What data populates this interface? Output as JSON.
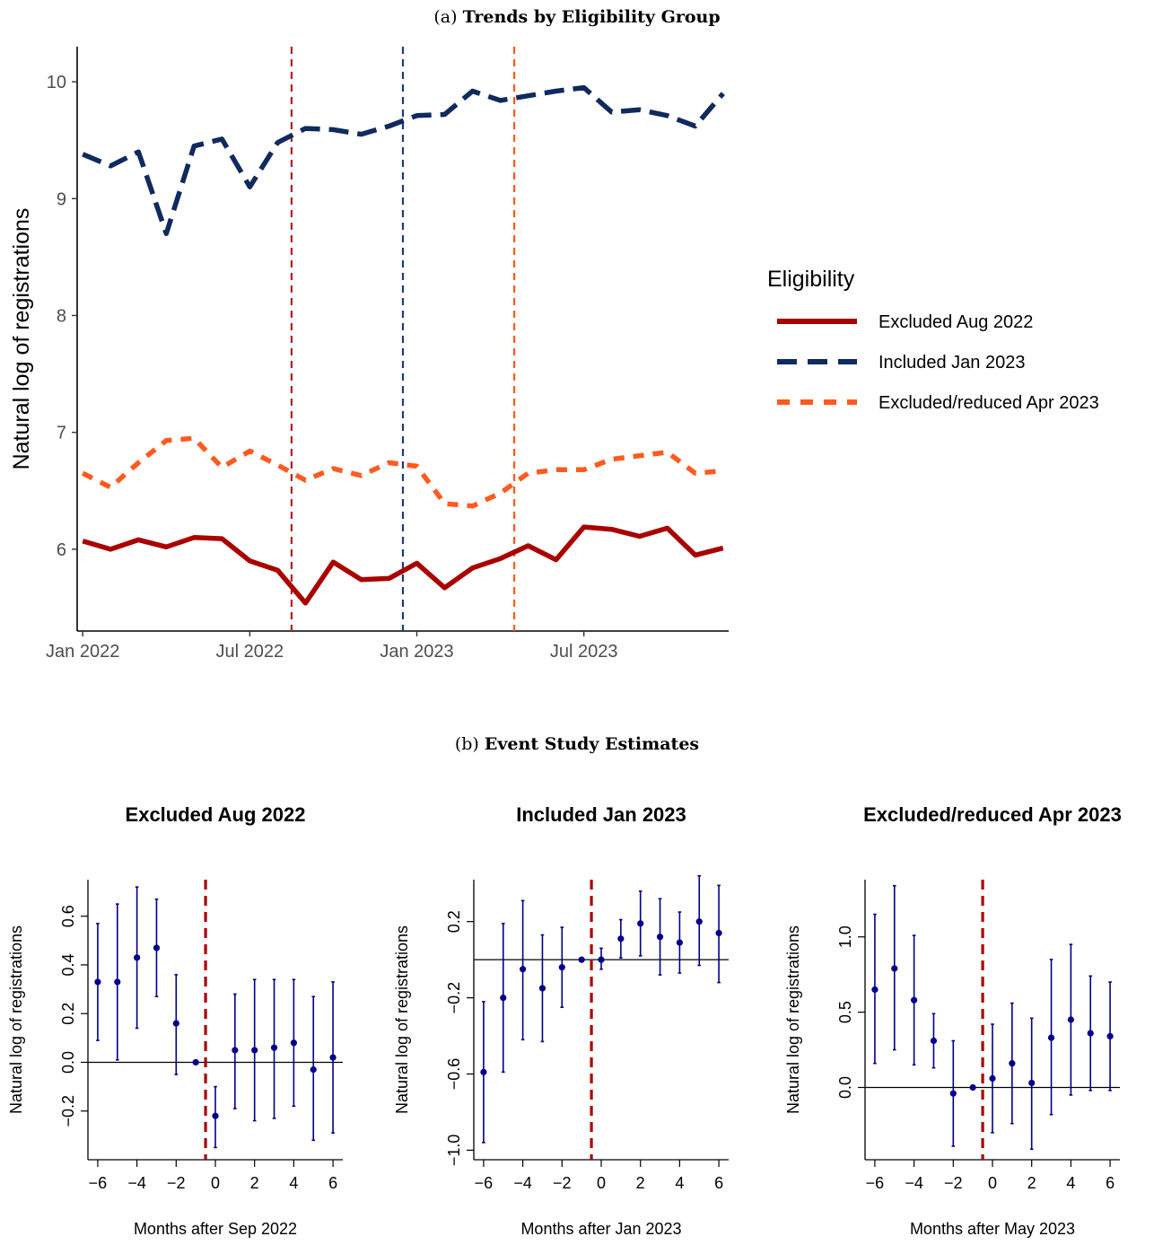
{
  "captions": {
    "a_prefix": "(a)",
    "a_title": "Trends by Eligibility Group",
    "b_prefix": "(b)",
    "b_title": "Event Study Estimates"
  },
  "chart_data": [
    {
      "type": "line",
      "ylabel": "Natural log of registrations",
      "ylim": [
        5.3,
        10.3
      ],
      "yticks": [
        6,
        7,
        8,
        9,
        10
      ],
      "xticks": [
        {
          "label": "Jan 2022",
          "month": 0
        },
        {
          "label": "Jul 2022",
          "month": 6
        },
        {
          "label": "Jan 2023",
          "month": 12
        },
        {
          "label": "Jul 2023",
          "month": 18
        }
      ],
      "xlim": [
        -0.2,
        23.2
      ],
      "legend_title": "Eligibility",
      "legend_position": "right",
      "vlines": [
        {
          "month": 7.5,
          "color": "#b22222"
        },
        {
          "month": 11.5,
          "color": "#1f3a7a"
        },
        {
          "month": 15.5,
          "color": "#ff5a1f"
        }
      ],
      "series": [
        {
          "name": "Excluded Aug 2022",
          "color": "#aa0000",
          "dash": "solid",
          "values": [
            6.07,
            6.0,
            6.08,
            6.02,
            6.1,
            6.09,
            5.9,
            5.82,
            5.54,
            5.89,
            5.74,
            5.75,
            5.88,
            5.67,
            5.84,
            5.92,
            6.03,
            5.91,
            6.19,
            6.17,
            6.11,
            6.18,
            5.95,
            6.01
          ]
        },
        {
          "name": "Included Jan 2023",
          "color": "#102a5e",
          "dash": "long",
          "values": [
            9.38,
            9.28,
            9.4,
            8.7,
            9.45,
            9.51,
            9.1,
            9.48,
            9.6,
            9.59,
            9.55,
            9.62,
            9.71,
            9.72,
            9.92,
            9.84,
            9.88,
            9.92,
            9.95,
            9.74,
            9.76,
            9.71,
            9.62,
            9.9
          ]
        },
        {
          "name": "Excluded/reduced Apr 2023",
          "color": "#ff5a1f",
          "dash": "short",
          "values": [
            6.65,
            6.53,
            6.74,
            6.93,
            6.95,
            6.7,
            6.84,
            6.72,
            6.59,
            6.69,
            6.63,
            6.74,
            6.71,
            6.39,
            6.37,
            6.48,
            6.65,
            6.68,
            6.68,
            6.77,
            6.8,
            6.83,
            6.65,
            6.67
          ]
        }
      ]
    },
    {
      "type": "scatter",
      "title": "Excluded Aug 2022",
      "xlabel": "Months after Sep 2022",
      "ylabel": "Natural log of registrations",
      "xlim": [
        -6.5,
        6.5
      ],
      "ylim": [
        -0.4,
        0.75
      ],
      "yticks": [
        -0.2,
        0.0,
        0.2,
        0.4,
        0.6
      ],
      "ytick_labels": [
        "−0.2",
        "0.0",
        "0.2",
        "0.4",
        "0.6"
      ],
      "xticks": [
        -6,
        -4,
        -2,
        0,
        2,
        4,
        6
      ],
      "xtick_labels": [
        "−6",
        "−4",
        "−2",
        "0",
        "2",
        "4",
        "6"
      ],
      "vline": -0.5,
      "points": [
        {
          "x": -6,
          "y": 0.33,
          "lo": 0.09,
          "hi": 0.57
        },
        {
          "x": -5,
          "y": 0.33,
          "lo": 0.01,
          "hi": 0.65
        },
        {
          "x": -4,
          "y": 0.43,
          "lo": 0.14,
          "hi": 0.72
        },
        {
          "x": -3,
          "y": 0.47,
          "lo": 0.27,
          "hi": 0.67
        },
        {
          "x": -2,
          "y": 0.16,
          "lo": -0.05,
          "hi": 0.36
        },
        {
          "x": -1,
          "y": 0.0,
          "lo": 0.0,
          "hi": 0.0
        },
        {
          "x": 0,
          "y": -0.22,
          "lo": -0.35,
          "hi": -0.1
        },
        {
          "x": 1,
          "y": 0.05,
          "lo": -0.19,
          "hi": 0.28
        },
        {
          "x": 2,
          "y": 0.05,
          "lo": -0.24,
          "hi": 0.34
        },
        {
          "x": 3,
          "y": 0.06,
          "lo": -0.23,
          "hi": 0.34
        },
        {
          "x": 4,
          "y": 0.08,
          "lo": -0.18,
          "hi": 0.34
        },
        {
          "x": 5,
          "y": -0.03,
          "lo": -0.32,
          "hi": 0.27
        },
        {
          "x": 6,
          "y": 0.02,
          "lo": -0.29,
          "hi": 0.33
        }
      ]
    },
    {
      "type": "scatter",
      "title": "Included Jan 2023",
      "xlabel": "Months after Jan 2023",
      "ylabel": "Natural log of registrations",
      "xlim": [
        -6.5,
        6.5
      ],
      "ylim": [
        -1.05,
        0.42
      ],
      "yticks": [
        -1.0,
        -0.6,
        -0.2,
        0.2
      ],
      "ytick_labels": [
        "−1.0",
        "−0.6",
        "−0.2",
        "0.2"
      ],
      "xticks": [
        -6,
        -4,
        -2,
        0,
        2,
        4,
        6
      ],
      "xtick_labels": [
        "−6",
        "−4",
        "−2",
        "0",
        "2",
        "4",
        "6"
      ],
      "vline": -0.5,
      "points": [
        {
          "x": -6,
          "y": -0.59,
          "lo": -0.96,
          "hi": -0.22
        },
        {
          "x": -5,
          "y": -0.2,
          "lo": -0.59,
          "hi": 0.19
        },
        {
          "x": -4,
          "y": -0.05,
          "lo": -0.42,
          "hi": 0.31
        },
        {
          "x": -3,
          "y": -0.15,
          "lo": -0.43,
          "hi": 0.13
        },
        {
          "x": -2,
          "y": -0.04,
          "lo": -0.25,
          "hi": 0.17
        },
        {
          "x": -1,
          "y": 0.0,
          "lo": 0.0,
          "hi": 0.0
        },
        {
          "x": 0,
          "y": 0.0,
          "lo": -0.05,
          "hi": 0.06
        },
        {
          "x": 1,
          "y": 0.11,
          "lo": 0.01,
          "hi": 0.21
        },
        {
          "x": 2,
          "y": 0.19,
          "lo": 0.02,
          "hi": 0.36
        },
        {
          "x": 3,
          "y": 0.12,
          "lo": -0.08,
          "hi": 0.32
        },
        {
          "x": 4,
          "y": 0.09,
          "lo": -0.07,
          "hi": 0.25
        },
        {
          "x": 5,
          "y": 0.2,
          "lo": -0.03,
          "hi": 0.44
        },
        {
          "x": 6,
          "y": 0.14,
          "lo": -0.12,
          "hi": 0.39
        }
      ]
    },
    {
      "type": "scatter",
      "title": "Excluded/reduced Apr 2023",
      "xlabel": "Months after May 2023",
      "ylabel": "Natural log of registrations",
      "xlim": [
        -6.5,
        6.5
      ],
      "ylim": [
        -0.48,
        1.38
      ],
      "yticks": [
        0.0,
        0.5,
        1.0
      ],
      "ytick_labels": [
        "0.0",
        "0.5",
        "1.0"
      ],
      "xticks": [
        -6,
        -4,
        -2,
        0,
        2,
        4,
        6
      ],
      "xtick_labels": [
        "−6",
        "−4",
        "−2",
        "0",
        "2",
        "4",
        "6"
      ],
      "vline": -0.5,
      "points": [
        {
          "x": -6,
          "y": 0.65,
          "lo": 0.16,
          "hi": 1.15
        },
        {
          "x": -5,
          "y": 0.79,
          "lo": 0.25,
          "hi": 1.34
        },
        {
          "x": -4,
          "y": 0.58,
          "lo": 0.15,
          "hi": 1.01
        },
        {
          "x": -3,
          "y": 0.31,
          "lo": 0.13,
          "hi": 0.49
        },
        {
          "x": -2,
          "y": -0.04,
          "lo": -0.39,
          "hi": 0.31
        },
        {
          "x": -1,
          "y": 0.0,
          "lo": 0.0,
          "hi": 0.0
        },
        {
          "x": 0,
          "y": 0.06,
          "lo": -0.3,
          "hi": 0.42
        },
        {
          "x": 1,
          "y": 0.16,
          "lo": -0.24,
          "hi": 0.56
        },
        {
          "x": 2,
          "y": 0.03,
          "lo": -0.41,
          "hi": 0.46
        },
        {
          "x": 3,
          "y": 0.33,
          "lo": -0.18,
          "hi": 0.85
        },
        {
          "x": 4,
          "y": 0.45,
          "lo": -0.05,
          "hi": 0.95
        },
        {
          "x": 5,
          "y": 0.36,
          "lo": -0.02,
          "hi": 0.74
        },
        {
          "x": 6,
          "y": 0.34,
          "lo": -0.02,
          "hi": 0.7
        }
      ]
    }
  ]
}
